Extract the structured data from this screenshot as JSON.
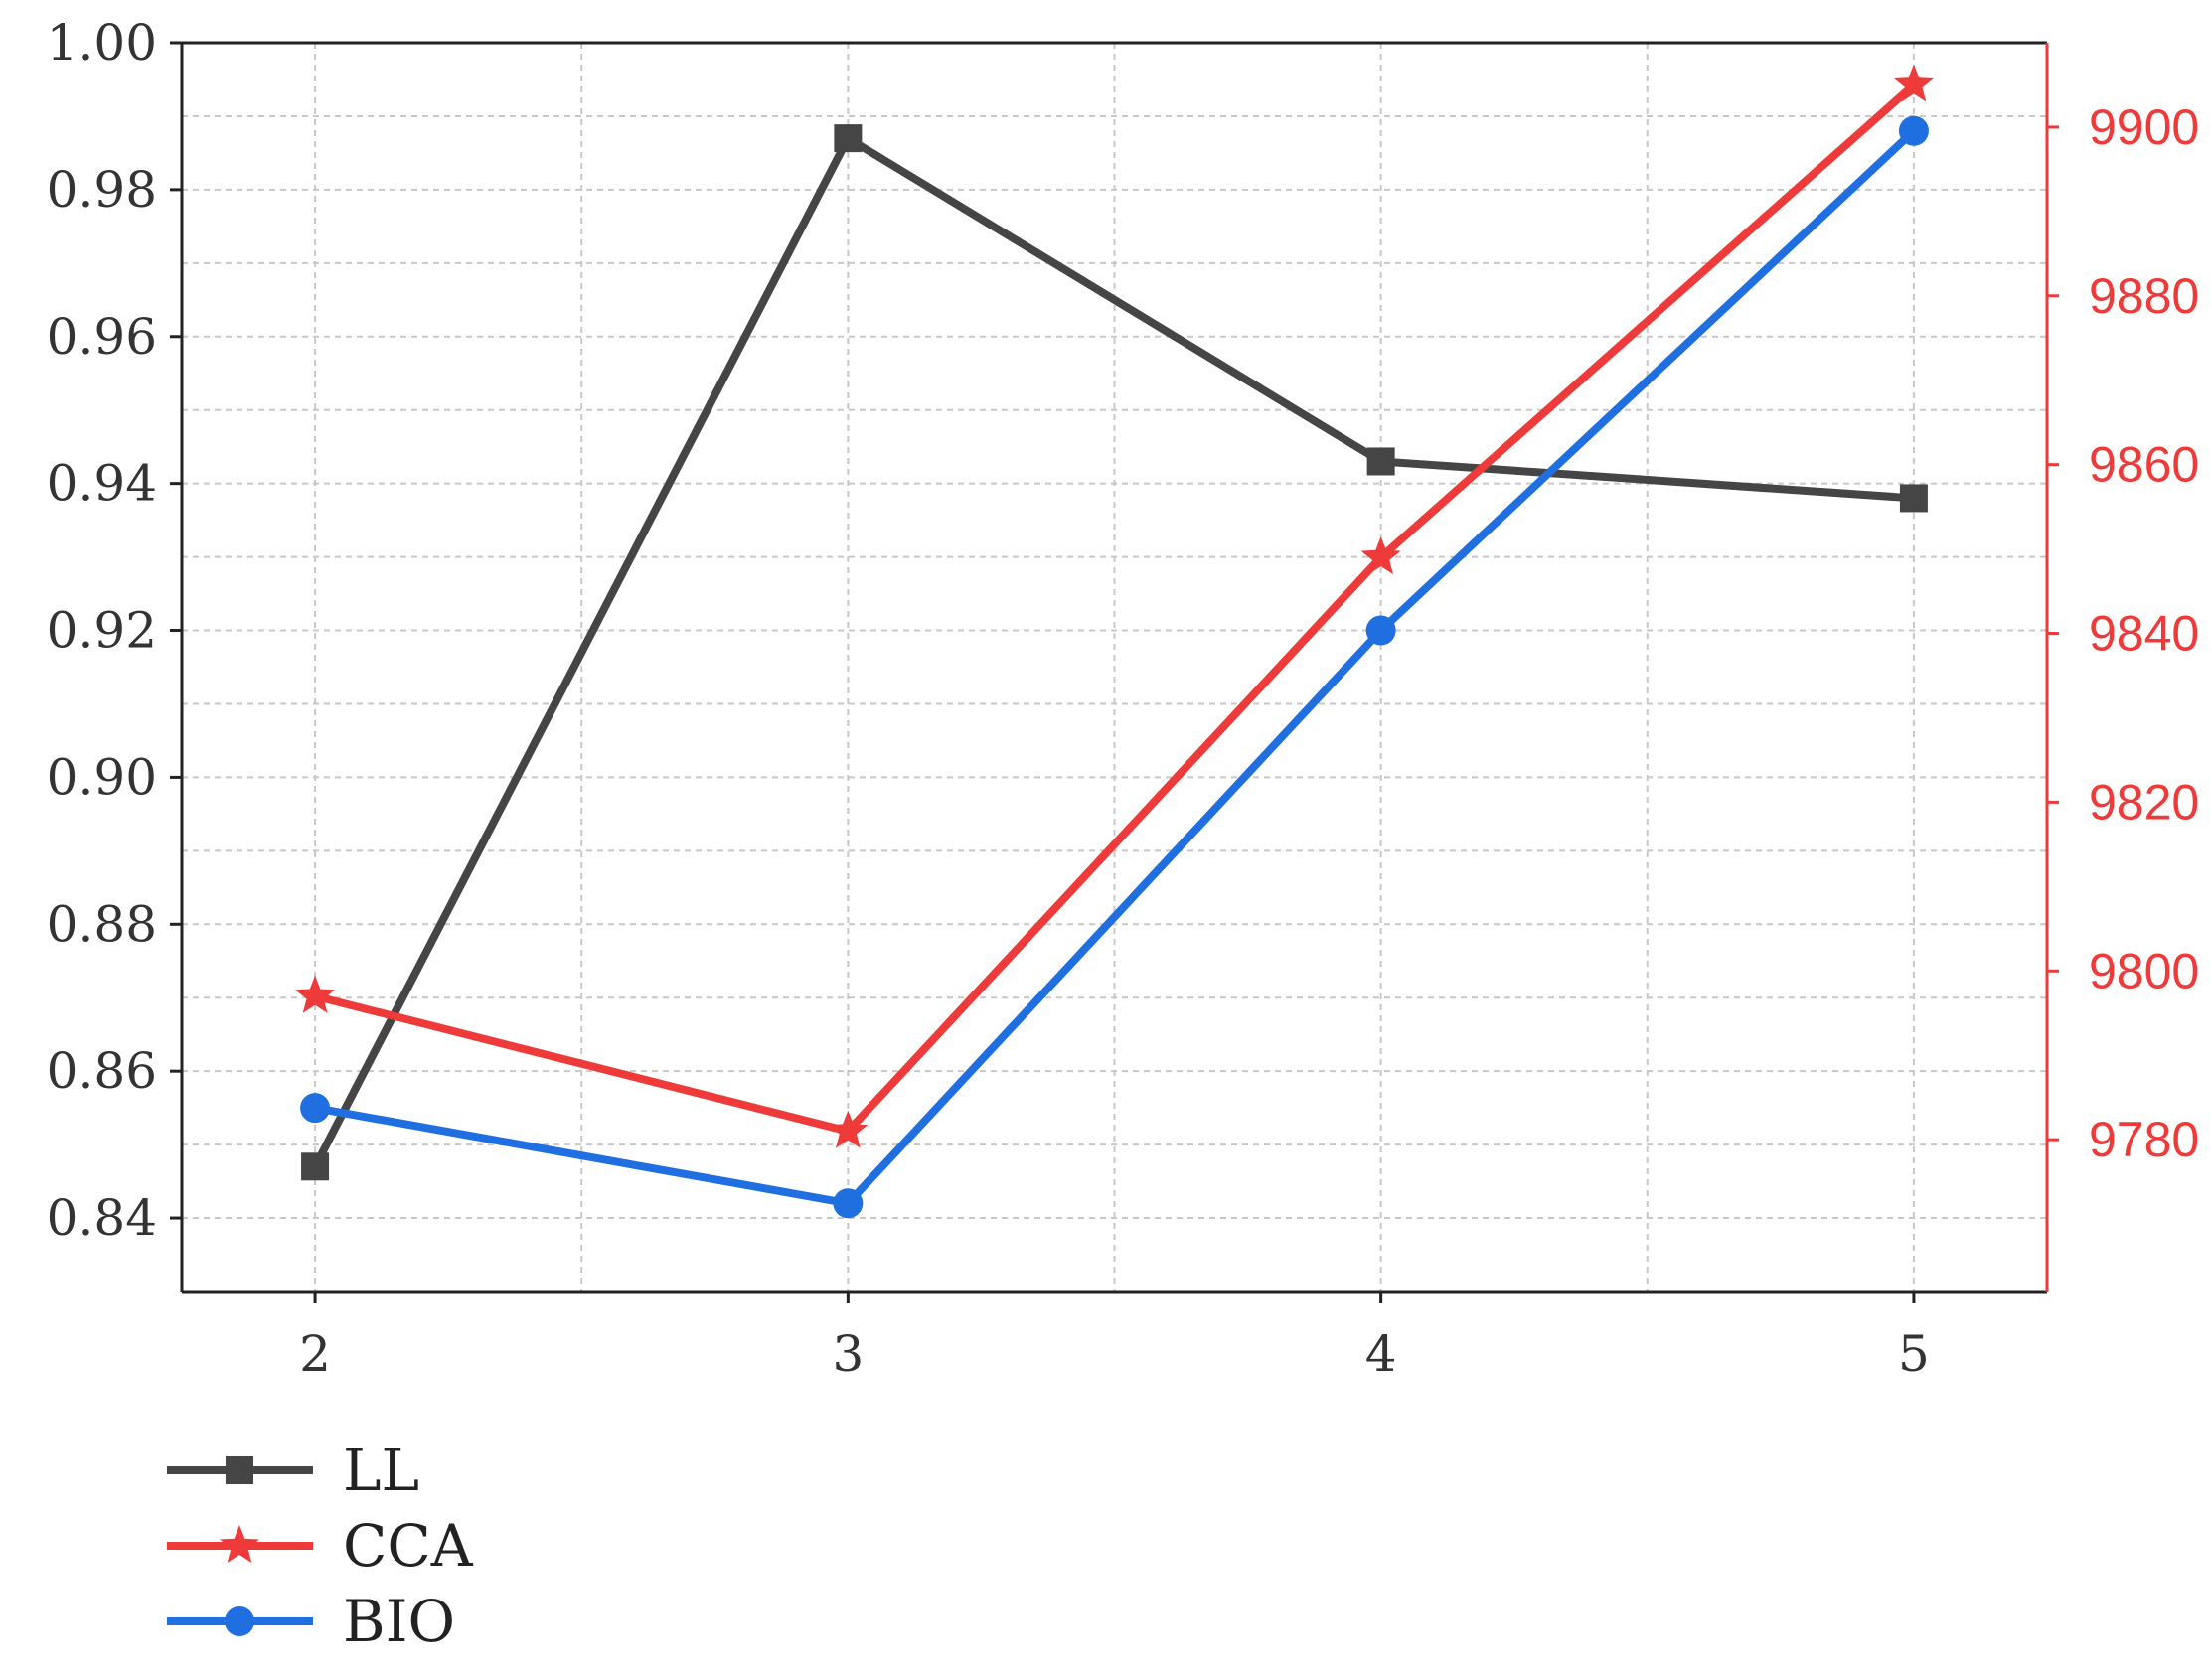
{
  "chart_data": {
    "type": "line",
    "title": "",
    "xlabel": "",
    "ylabel": "",
    "y2label": "",
    "x": [
      2,
      3,
      4,
      5
    ],
    "x_tick_labels": [
      "2",
      "3",
      "4",
      "5"
    ],
    "xlim": [
      1.75,
      5.25
    ],
    "ylim": [
      0.83,
      1.0
    ],
    "y_ticks": [
      0.84,
      0.86,
      0.88,
      0.9,
      0.92,
      0.94,
      0.96,
      0.98,
      1.0
    ],
    "y_tick_labels": [
      "0.84",
      "0.86",
      "0.88",
      "0.90",
      "0.92",
      "0.94",
      "0.96",
      "0.98",
      "1.00"
    ],
    "y2lim": [
      9762,
      9910
    ],
    "y2_ticks": [
      9780,
      9800,
      9820,
      9840,
      9860,
      9880,
      9900
    ],
    "y2_tick_labels": [
      "9780",
      "9800",
      "9820",
      "9840",
      "9860",
      "9880",
      "9900"
    ],
    "grid": true,
    "legend_position": "bottom-left",
    "series": [
      {
        "name": "LL",
        "axis": "left",
        "color": "#454545",
        "marker": "square",
        "values": [
          0.847,
          0.987,
          0.943,
          0.938
        ]
      },
      {
        "name": "CCA",
        "axis": "right",
        "color": "#ef3a3a",
        "marker": "star",
        "values": [
          9797,
          9781,
          9849,
          9905
        ]
      },
      {
        "name": "BIO",
        "axis": "left",
        "color": "#1f6fe0",
        "marker": "circle",
        "values": [
          0.855,
          0.842,
          0.92,
          0.988
        ]
      }
    ],
    "right_axis_color": "#ef3a3a"
  }
}
